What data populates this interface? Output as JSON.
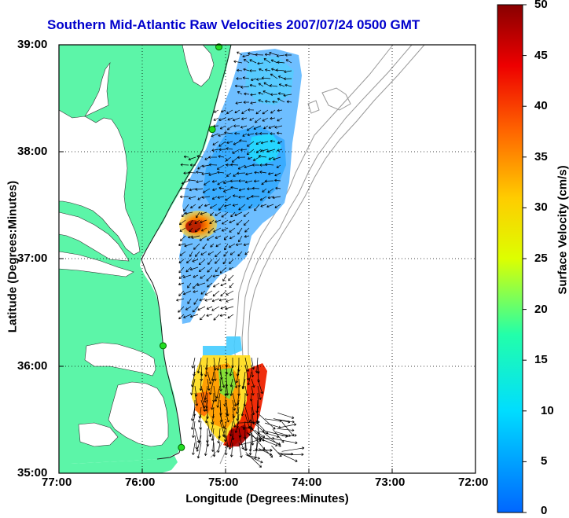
{
  "title": "Southern Mid-Atlantic Raw Velocities 2007/07/24 0500 GMT",
  "xaxis": {
    "label": "Longitude (Degrees:Minutes)",
    "ticks": [
      "77:00",
      "76:00",
      "75:00",
      "74:00",
      "73:00",
      "72:00"
    ]
  },
  "yaxis": {
    "label": "Latitude (Degrees:Minutes)",
    "ticks": [
      "39:00",
      "38:00",
      "37:00",
      "36:00",
      "35:00"
    ]
  },
  "colorbar": {
    "label": "Surface Velocity (cm/s)",
    "ticks": [
      "50",
      "45",
      "40",
      "35",
      "30",
      "25",
      "20",
      "15",
      "10",
      "5",
      "0"
    ],
    "min": 0,
    "max": 50
  },
  "colors": {
    "land": "#5cf5a8",
    "title": "#0000cc",
    "stations": "#22dd22",
    "bathymetry": "#999999"
  },
  "map_extent": {
    "lon": [
      -77,
      -72
    ],
    "lat": [
      35,
      39
    ]
  },
  "stations": [
    {
      "lon": -75.08,
      "lat": 38.98
    },
    {
      "lon": -75.16,
      "lat": 38.21
    },
    {
      "lon": -75.75,
      "lat": 36.19
    },
    {
      "lon": -75.53,
      "lat": 35.24
    }
  ]
}
